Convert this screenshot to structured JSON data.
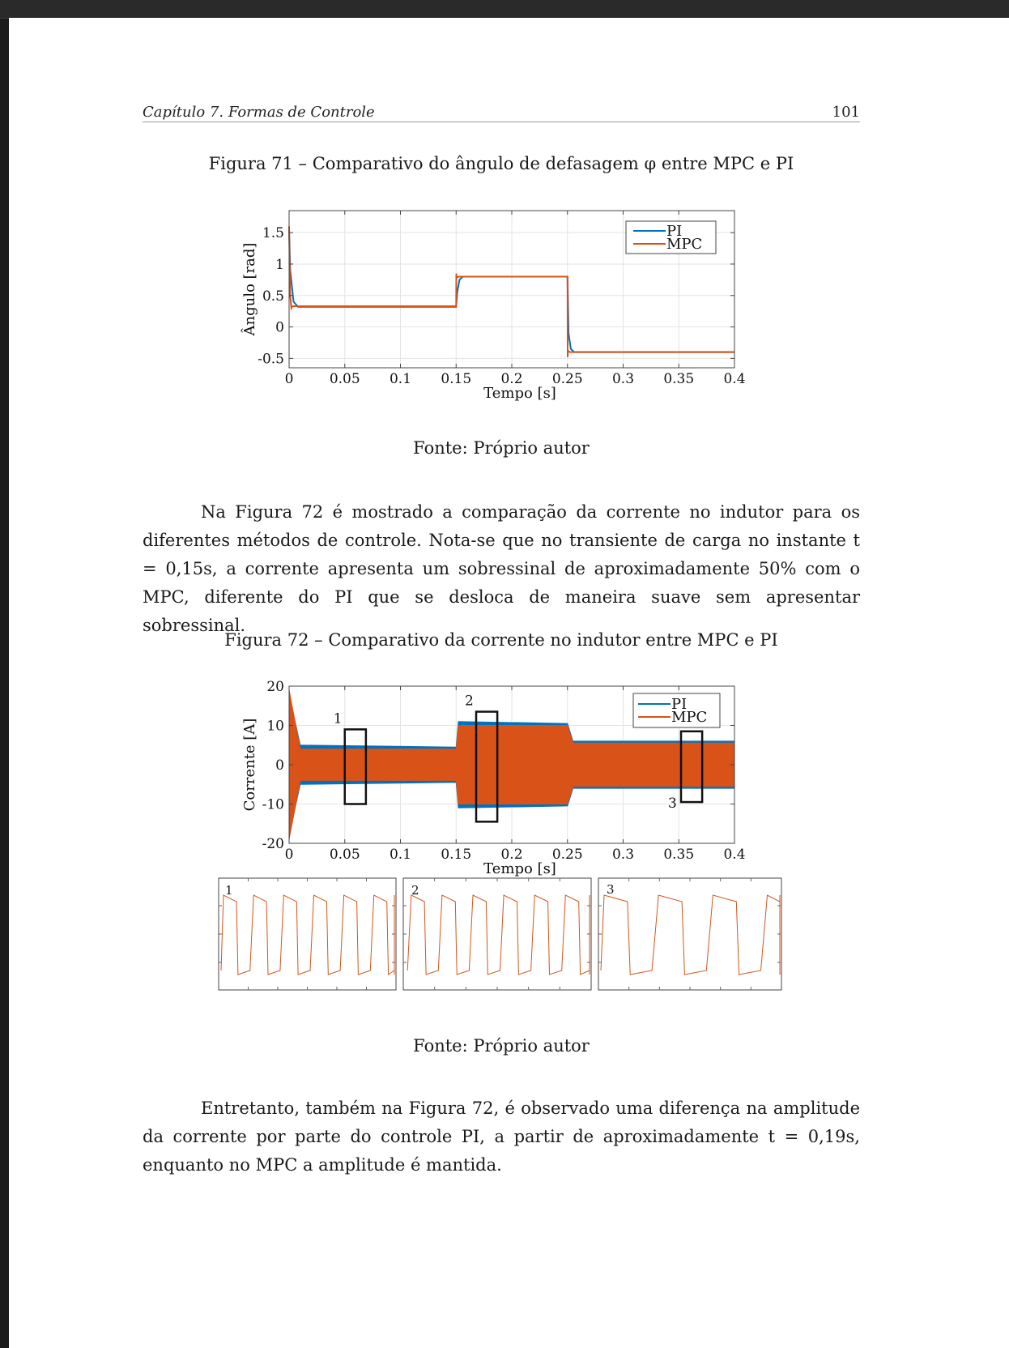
{
  "header": {
    "chapter": "Capítulo 7.  Formas de Controle",
    "page_number": "101"
  },
  "figure71": {
    "caption": "Figura 71 – Comparativo do ângulo de defasagem φ entre MPC e PI",
    "source": "Fonte: Próprio autor"
  },
  "paragraph1": "Na Figura 72 é mostrado a comparação da corrente no indutor para os diferentes métodos de controle. Nota-se que no transiente de carga no instante t = 0,15s, a corrente apresenta um sobressinal de aproximadamente 50% com o MPC, diferente do PI que se desloca de maneira suave sem apresentar sobressinal.",
  "figure72": {
    "caption": "Figura 72 – Comparativo da corrente no indutor entre MPC e PI",
    "source": "Fonte: Próprio autor"
  },
  "paragraph2": "Entretanto, também na Figura 72, é observado uma diferença na amplitude da corrente por parte do controle PI, a partir de aproximadamente t = 0,19s, enquanto no MPC a amplitude é mantida.",
  "chart_data": [
    {
      "type": "line",
      "xlabel": "Tempo [s]",
      "ylabel": "Ângulo [rad]",
      "xlim": [
        0,
        0.4
      ],
      "ylim": [
        -0.65,
        1.85
      ],
      "x_ticks": [
        0,
        0.05,
        0.1,
        0.15,
        0.2,
        0.25,
        0.3,
        0.35,
        0.4
      ],
      "x_tick_labels": [
        "0",
        "0.05",
        "0.1",
        "0.15",
        "0.2",
        "0.25",
        "0.3",
        "0.35",
        "0.4"
      ],
      "y_ticks": [
        -0.5,
        0,
        0.5,
        1,
        1.5
      ],
      "y_tick_labels": [
        "-0.5",
        "0",
        "0.5",
        "1",
        "1.5"
      ],
      "grid": true,
      "legend_position": "top-right",
      "series": [
        {
          "name": "PI",
          "color": "#0072BD",
          "x": [
            0,
            0.001,
            0.004,
            0.008,
            0.15,
            0.151,
            0.153,
            0.156,
            0.25,
            0.251,
            0.253,
            0.256,
            0.4
          ],
          "y": [
            1.55,
            0.9,
            0.4,
            0.32,
            0.32,
            0.55,
            0.75,
            0.8,
            0.8,
            -0.1,
            -0.35,
            -0.4,
            -0.4
          ]
        },
        {
          "name": "MPC",
          "color": "#D95319",
          "x": [
            0,
            0.0005,
            0.001,
            0.002,
            0.003,
            0.15,
            0.1502,
            0.1505,
            0.152,
            0.25,
            0.2502,
            0.2505,
            0.252,
            0.4
          ],
          "y": [
            1.6,
            1.0,
            0.5,
            0.3,
            0.33,
            0.33,
            0.85,
            0.78,
            0.8,
            0.8,
            -0.48,
            -0.38,
            -0.4,
            -0.4
          ]
        }
      ]
    },
    {
      "type": "area",
      "xlabel": "Tempo [s]",
      "ylabel": "Corrente [A]",
      "xlim": [
        0,
        0.4
      ],
      "ylim": [
        -20,
        20
      ],
      "x_ticks": [
        0,
        0.05,
        0.1,
        0.15,
        0.2,
        0.25,
        0.3,
        0.35,
        0.4
      ],
      "x_tick_labels": [
        "0",
        "0.05",
        "0.1",
        "0.15",
        "0.2",
        "0.25",
        "0.3",
        "0.35",
        "0.4"
      ],
      "y_ticks": [
        -20,
        -10,
        0,
        10,
        20
      ],
      "y_tick_labels": [
        "-20",
        "-10",
        "0",
        "10",
        "20"
      ],
      "grid": true,
      "legend_position": "top-right",
      "series": [
        {
          "name": "PI",
          "color": "#0072BD",
          "envelope": [
            [
              0,
              18,
              -18
            ],
            [
              0.01,
              5,
              -5
            ],
            [
              0.15,
              4.5,
              -4.5
            ],
            [
              0.152,
              11,
              -11
            ],
            [
              0.25,
              10.5,
              -10.5
            ],
            [
              0.255,
              6,
              -6
            ],
            [
              0.4,
              6,
              -6
            ]
          ]
        },
        {
          "name": "MPC",
          "color": "#D95319",
          "envelope": [
            [
              0,
              19,
              -19
            ],
            [
              0.01,
              4,
              -4
            ],
            [
              0.15,
              4,
              -4
            ],
            [
              0.152,
              10,
              -10
            ],
            [
              0.25,
              10,
              -10
            ],
            [
              0.255,
              5.5,
              -5.5
            ],
            [
              0.4,
              5.5,
              -5.5
            ]
          ]
        }
      ],
      "annotations": [
        {
          "label": "1",
          "x0": 0.05,
          "x1": 0.069,
          "y0": -10,
          "y1": 9
        },
        {
          "label": "2",
          "x0": 0.168,
          "x1": 0.187,
          "y0": -14.5,
          "y1": 13.5
        },
        {
          "label": "3",
          "x0": 0.352,
          "x1": 0.371,
          "y0": -9.5,
          "y1": 8.5
        }
      ]
    },
    {
      "type": "line",
      "title": "1",
      "series": [
        {
          "name": "",
          "color": "#D95319",
          "description": "square-like MPC current waveform, zoom region 1"
        }
      ]
    },
    {
      "type": "line",
      "title": "2",
      "series": [
        {
          "name": "",
          "color": "#D95319",
          "description": "square-like MPC current waveform, zoom region 2"
        }
      ]
    },
    {
      "type": "line",
      "title": "3",
      "series": [
        {
          "name": "",
          "color": "#D95319",
          "description": "square-like MPC current waveform, zoom region 3"
        }
      ]
    }
  ]
}
